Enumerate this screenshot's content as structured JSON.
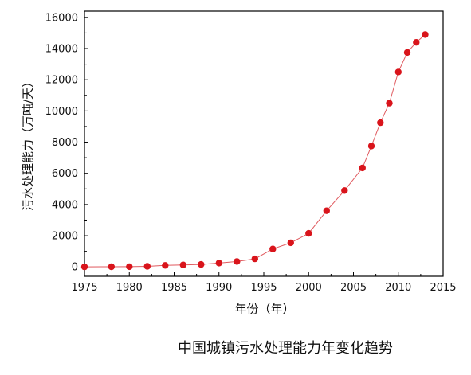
{
  "chart_data": {
    "type": "scatter",
    "title": "中国城镇污水处理能力年变化趋势",
    "xlabel": "年份（年）",
    "ylabel": "污水处理能力（万吨/天）",
    "xlim": [
      1975,
      2015
    ],
    "ylim": [
      -600,
      16400
    ],
    "xticks": [
      1975,
      1980,
      1985,
      1990,
      1995,
      2000,
      2005,
      2010,
      2015
    ],
    "yticks": [
      0,
      2000,
      4000,
      6000,
      8000,
      10000,
      12000,
      14000,
      16000
    ],
    "grid": false,
    "marker_color": "#d9141b",
    "line_color": "#e05a5f",
    "series": [
      {
        "x": [
          1975,
          1978,
          1980,
          1982,
          1984,
          1986,
          1988,
          1990,
          1992,
          1994,
          1996,
          1998,
          2000,
          2002,
          2004,
          2006,
          2007,
          2008,
          2009,
          2010,
          2011,
          2012,
          2013
        ],
        "y": [
          10,
          15,
          20,
          40,
          100,
          130,
          160,
          250,
          350,
          520,
          1150,
          1550,
          2150,
          3600,
          4900,
          6350,
          7750,
          9250,
          10500,
          12500,
          13750,
          14400,
          14900
        ]
      }
    ]
  }
}
